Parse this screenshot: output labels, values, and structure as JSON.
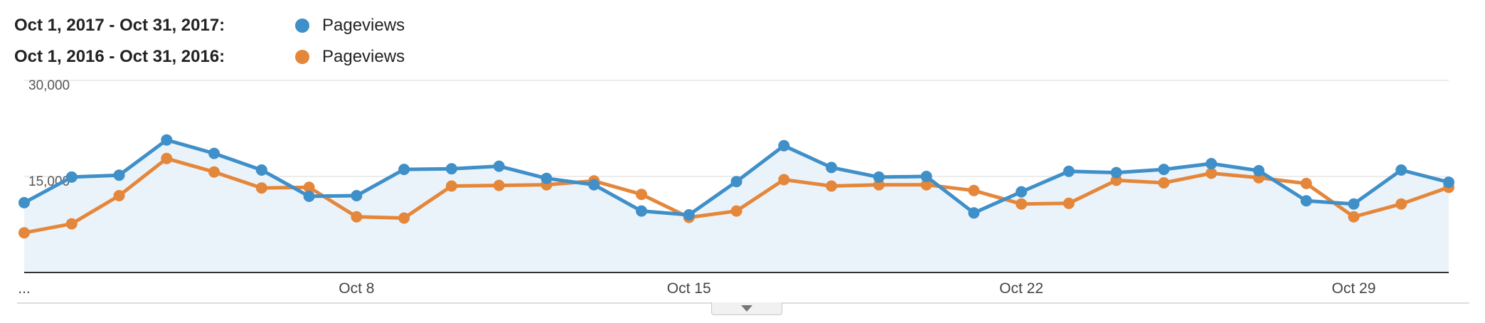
{
  "legend": [
    {
      "range": "Oct 1, 2017 - Oct 31, 2017:",
      "metric": "Pageviews",
      "color": "#3f8fc9"
    },
    {
      "range": "Oct 1, 2016 - Oct 31, 2016:",
      "metric": "Pageviews",
      "color": "#e5873a"
    }
  ],
  "chart_data": {
    "type": "line",
    "y_ticks": [
      "30,000",
      "15,000"
    ],
    "ylim": [
      0,
      30000
    ],
    "x_ticks": [
      {
        "label": "...",
        "day": 1
      },
      {
        "label": "Oct 8",
        "day": 8
      },
      {
        "label": "Oct 15",
        "day": 15
      },
      {
        "label": "Oct 22",
        "day": 22
      },
      {
        "label": "Oct 29",
        "day": 29
      }
    ],
    "x": [
      1,
      2,
      3,
      4,
      5,
      6,
      7,
      8,
      9,
      10,
      11,
      12,
      13,
      14,
      15,
      16,
      17,
      18,
      19,
      20,
      21,
      22,
      23,
      24,
      25,
      26,
      27,
      28,
      29,
      30,
      31
    ],
    "series": [
      {
        "name": "Oct 1, 2017 - Oct 31, 2017 Pageviews",
        "color": "#3f8fc9",
        "area": true,
        "values": [
          10900,
          14900,
          15200,
          20700,
          18600,
          16000,
          11900,
          12000,
          16100,
          16200,
          16600,
          14700,
          13700,
          9600,
          9000,
          14200,
          19800,
          16400,
          14900,
          15000,
          9300,
          12600,
          15800,
          15600,
          16100,
          17000,
          15900,
          11200,
          10700,
          16000,
          14100
        ]
      },
      {
        "name": "Oct 1, 2016 - Oct 31, 2016 Pageviews",
        "color": "#e5873a",
        "area": false,
        "values": [
          6200,
          7600,
          12000,
          17800,
          15700,
          13200,
          13300,
          8700,
          8500,
          13500,
          13600,
          13700,
          14300,
          12200,
          8600,
          9600,
          14500,
          13500,
          13700,
          13700,
          12800,
          10700,
          10800,
          14400,
          14000,
          15500,
          14800,
          13900,
          8700,
          10700,
          13300
        ]
      }
    ]
  },
  "toggle": {
    "icon": "caret-down-icon"
  }
}
